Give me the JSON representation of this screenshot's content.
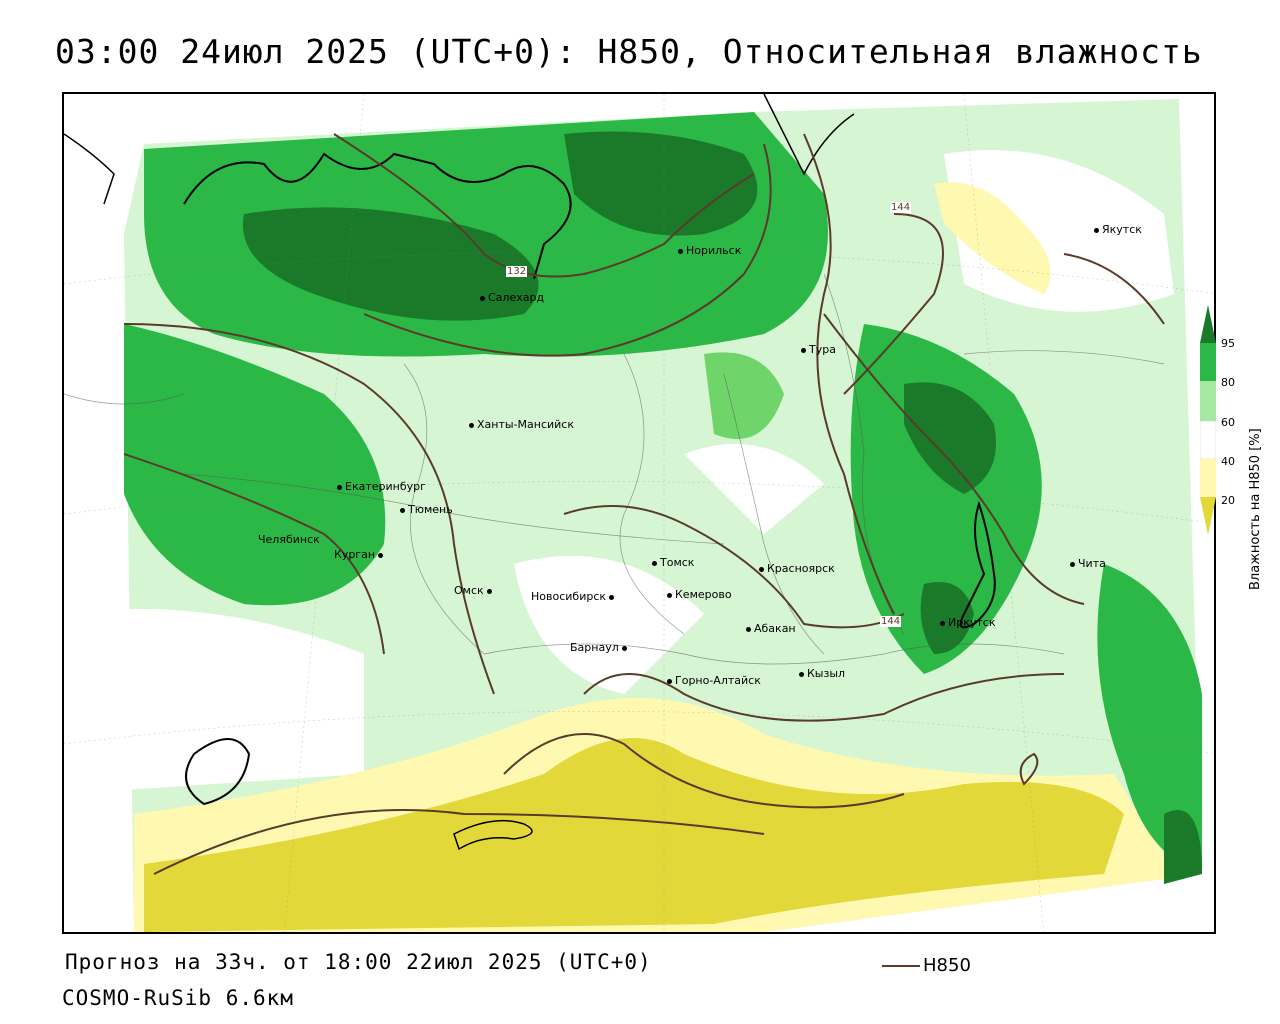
{
  "title": "03:00 24июл 2025 (UTC+0): H850, Относительная влажность",
  "footer": {
    "forecast": "Прогноз на 33ч. от 18:00 22июл 2025 (UTC+0)",
    "model": "COSMO-RuSib 6.6км"
  },
  "key": {
    "label": "H850",
    "color": "#5a3a2a"
  },
  "legend": {
    "title": "Влажность на H850 [%]",
    "ticks": [
      "95",
      "80",
      "60",
      "40",
      "20"
    ],
    "colors": {
      "gt95": "#1a7a2a",
      "80_95": "#2cb846",
      "60_80": "#a6e8a2",
      "40_60": "#ffffff",
      "20_40": "#fff8b0",
      "lt20": "#e2d83a"
    }
  },
  "contour_labels": [
    "132",
    "144",
    "144"
  ],
  "cities": [
    {
      "name": "Якутск"
    },
    {
      "name": "Норильск"
    },
    {
      "name": "Салехард"
    },
    {
      "name": "Тура"
    },
    {
      "name": "Ханты-Мансийск"
    },
    {
      "name": "Екатеринбург"
    },
    {
      "name": "Тюмень"
    },
    {
      "name": "Челябинск"
    },
    {
      "name": "Курган"
    },
    {
      "name": "Омск"
    },
    {
      "name": "Новосибирск"
    },
    {
      "name": "Томск"
    },
    {
      "name": "Кемерово"
    },
    {
      "name": "Красноярск"
    },
    {
      "name": "Абакан"
    },
    {
      "name": "Барнаул"
    },
    {
      "name": "Горно-Алтайск"
    },
    {
      "name": "Кызыл"
    },
    {
      "name": "Иркутск"
    },
    {
      "name": "Чита"
    }
  ]
}
